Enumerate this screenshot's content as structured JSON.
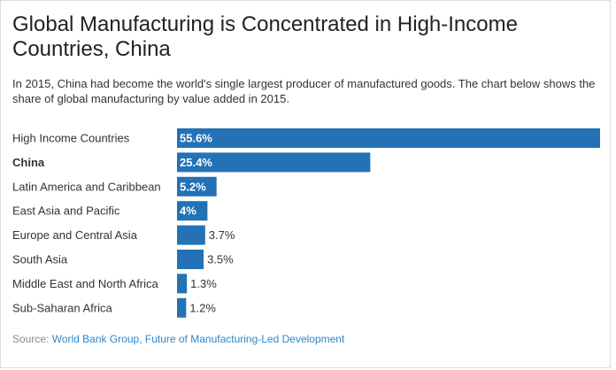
{
  "header": {
    "title": "Global Manufacturing is Concentrated in High-Income Countries, China",
    "subtitle": "In 2015, China had become the world's single largest producer of manufactured goods. The chart below shows the share of global manufacturing by value added in 2015."
  },
  "footer": {
    "source_label": "Source:",
    "source_text": "World Bank Group, Future of Manufacturing-Led Development"
  },
  "colors": {
    "bar": "#2372b5",
    "label_inside": "#ffffff",
    "label_outside": "#333333",
    "link": "#2f87c8"
  },
  "chart_data": {
    "type": "bar",
    "orientation": "horizontal",
    "title": "Global Manufacturing is Concentrated in High-Income Countries, China",
    "xlabel": "",
    "ylabel": "",
    "unit": "%",
    "xlim": [
      0,
      55.6
    ],
    "categories": [
      "High Income Countries",
      "China",
      "Latin America and Caribbean",
      "East Asia and Pacific",
      "Europe and Central Asia",
      "South Asia",
      "Middle East and North Africa",
      "Sub-Saharan Africa"
    ],
    "values": [
      55.6,
      25.4,
      5.2,
      4,
      3.7,
      3.5,
      1.3,
      1.2
    ],
    "value_labels": [
      "55.6%",
      "25.4%",
      "5.2%",
      "4%",
      "3.7%",
      "3.5%",
      "1.3%",
      "1.2%"
    ],
    "bold_categories": [
      "China"
    ]
  }
}
